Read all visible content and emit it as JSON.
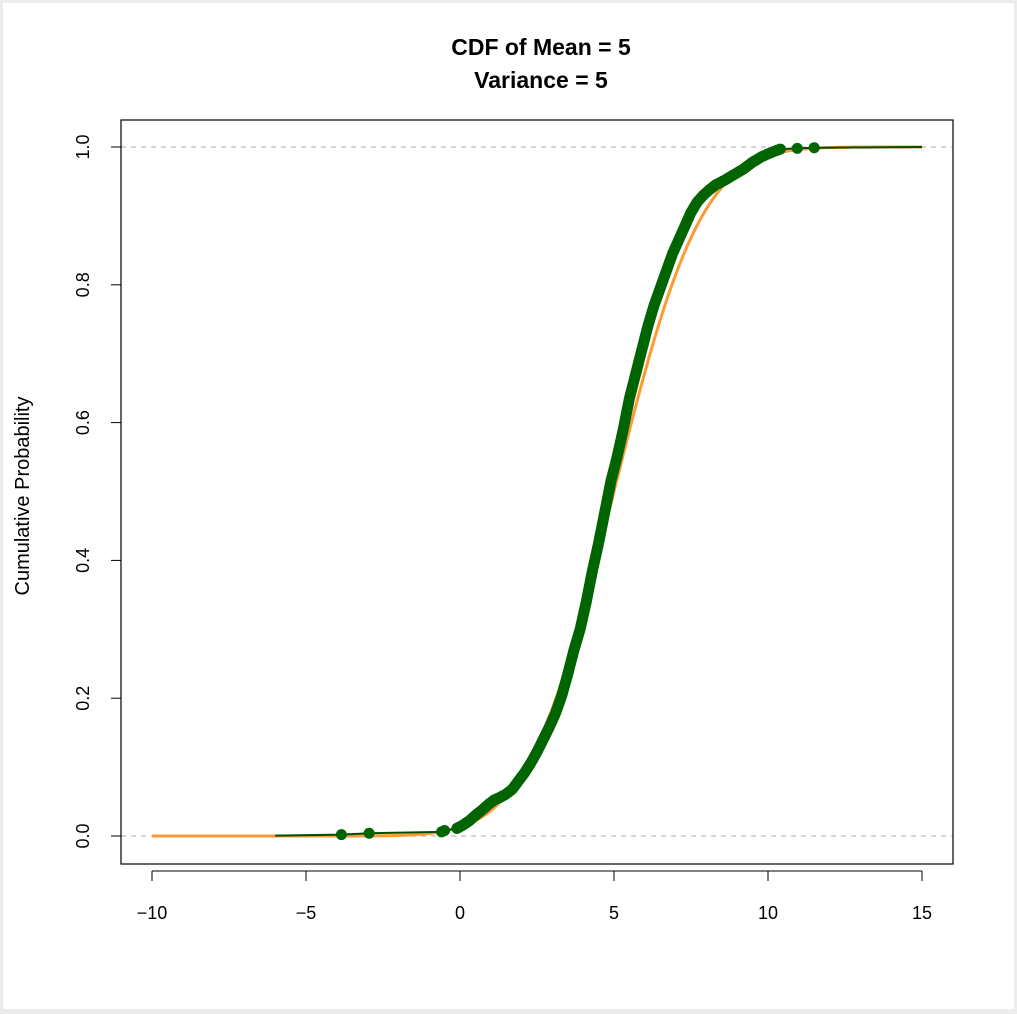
{
  "chart_data": {
    "type": "line",
    "title_line1": "CDF of Mean = 5",
    "title_line2": "Variance = 5",
    "xlabel": "",
    "ylabel": "Cumulative Probability",
    "xlim": [
      -10,
      15
    ],
    "ylim": [
      0,
      1
    ],
    "x_ticks": [
      "−10",
      "−5",
      "0",
      "5",
      "10",
      "15"
    ],
    "x_tick_values": [
      -10,
      -5,
      0,
      5,
      10,
      15
    ],
    "y_ticks": [
      "0.0",
      "0.2",
      "0.4",
      "0.6",
      "0.8",
      "1.0"
    ],
    "y_tick_values": [
      0,
      0.2,
      0.4,
      0.6,
      0.8,
      1.0
    ],
    "reference_lines_y": [
      0,
      1
    ],
    "theoretical": {
      "name": "Normal CDF (mean 5, variance 5)",
      "mean": 5,
      "variance": 5,
      "x_range": [
        -10,
        15
      ],
      "color": "#ff9933"
    },
    "empirical": {
      "name": "Empirical CDF",
      "color": "#006400",
      "line_color": "#004d00",
      "points": [
        [
          -3.85,
          0.002
        ],
        [
          -2.95,
          0.004
        ],
        [
          -0.6,
          0.006
        ],
        [
          -0.5,
          0.008
        ],
        [
          -0.1,
          0.011
        ],
        [
          0.1,
          0.016
        ],
        [
          0.3,
          0.022
        ],
        [
          0.5,
          0.03
        ],
        [
          0.7,
          0.037
        ],
        [
          0.9,
          0.045
        ],
        [
          1.1,
          0.052
        ],
        [
          1.3,
          0.056
        ],
        [
          1.5,
          0.061
        ],
        [
          1.7,
          0.068
        ],
        [
          1.9,
          0.08
        ],
        [
          2.1,
          0.092
        ],
        [
          2.3,
          0.106
        ],
        [
          2.5,
          0.122
        ],
        [
          2.7,
          0.14
        ],
        [
          2.9,
          0.158
        ],
        [
          3.1,
          0.178
        ],
        [
          3.3,
          0.203
        ],
        [
          3.5,
          0.235
        ],
        [
          3.7,
          0.27
        ],
        [
          3.9,
          0.3
        ],
        [
          4.1,
          0.34
        ],
        [
          4.3,
          0.385
        ],
        [
          4.5,
          0.425
        ],
        [
          4.7,
          0.47
        ],
        [
          4.9,
          0.515
        ],
        [
          5.1,
          0.55
        ],
        [
          5.3,
          0.59
        ],
        [
          5.5,
          0.635
        ],
        [
          5.7,
          0.67
        ],
        [
          5.9,
          0.705
        ],
        [
          6.1,
          0.74
        ],
        [
          6.3,
          0.77
        ],
        [
          6.5,
          0.795
        ],
        [
          6.7,
          0.82
        ],
        [
          6.9,
          0.845
        ],
        [
          7.1,
          0.865
        ],
        [
          7.3,
          0.885
        ],
        [
          7.5,
          0.905
        ],
        [
          7.7,
          0.92
        ],
        [
          7.9,
          0.93
        ],
        [
          8.1,
          0.938
        ],
        [
          8.3,
          0.945
        ],
        [
          8.6,
          0.952
        ],
        [
          8.9,
          0.96
        ],
        [
          9.2,
          0.968
        ],
        [
          9.5,
          0.978
        ],
        [
          9.8,
          0.986
        ],
        [
          10.1,
          0.992
        ],
        [
          10.4,
          0.997
        ],
        [
          10.95,
          0.998
        ],
        [
          11.5,
          0.999
        ]
      ]
    }
  }
}
